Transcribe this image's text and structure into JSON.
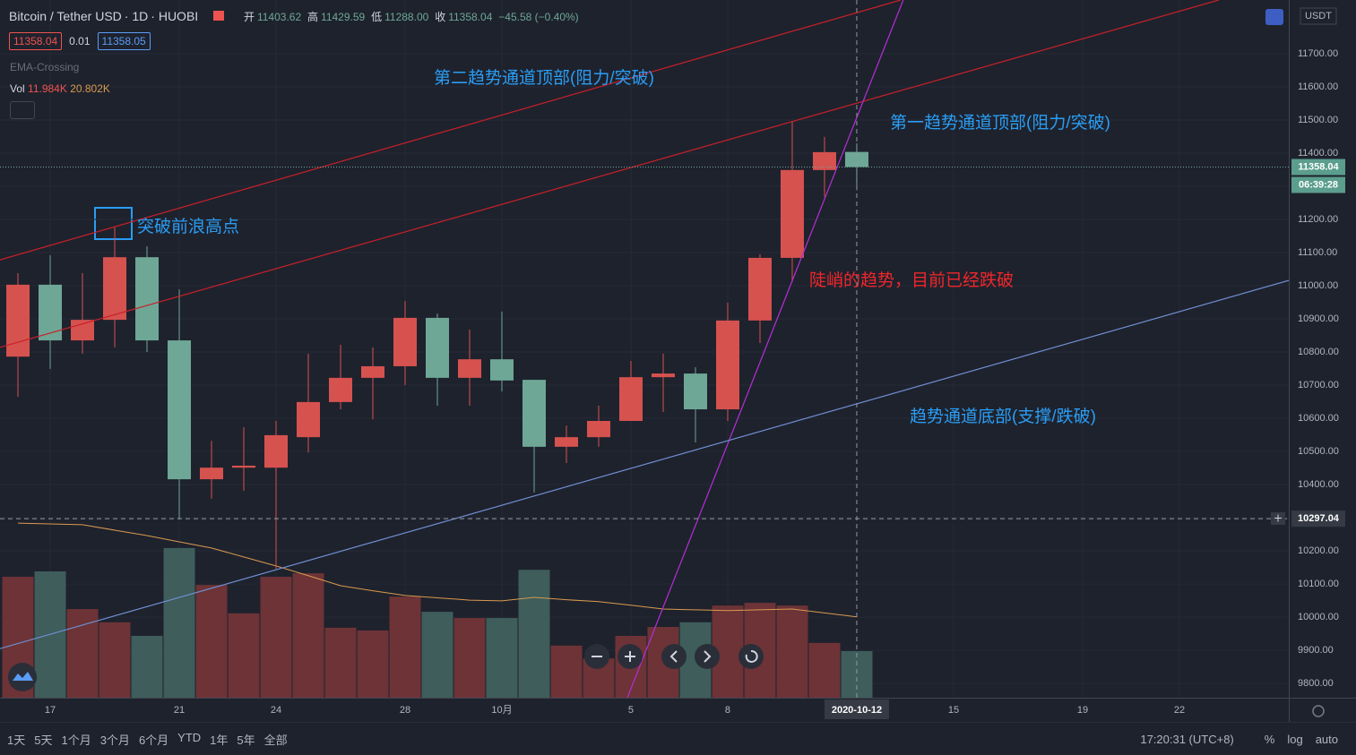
{
  "header": {
    "symbol": "Bitcoin / Tether USD",
    "interval": "1D",
    "exchange": "HUOBI",
    "ohlc_labels": [
      "开",
      "高",
      "低",
      "收"
    ],
    "ohlc": [
      "11403.62",
      "11429.59",
      "11288.00",
      "11358.04"
    ],
    "change": "−45.58 (−0.40%)",
    "bid": "11358.04",
    "spread": "0.01",
    "ask": "11358.05",
    "indicator": "EMA-Crossing",
    "vol_label": "Vol",
    "vol_value": "11.984K",
    "vol_ma": "20.802K"
  },
  "currency": "USDT",
  "chart_data": {
    "type": "candlestick",
    "categories": [
      null,
      "17",
      null,
      null,
      null,
      "21",
      null,
      null,
      "24",
      null,
      null,
      null,
      "28",
      null,
      null,
      "10月",
      null,
      null,
      null,
      "5",
      null,
      null,
      "8",
      null,
      null,
      null,
      "2020-10-12"
    ],
    "open": [
      10786,
      11003,
      10835,
      10897,
      11086,
      10835,
      10416,
      10451,
      10451,
      10543,
      10649,
      10722,
      10757,
      10903,
      10722,
      10778,
      10716,
      10514,
      10543,
      10592,
      10724,
      10735,
      10627,
      10895,
      11084,
      11349,
      11403.62
    ],
    "high": [
      11038,
      11092,
      11038,
      11178,
      11119,
      10989,
      10532,
      10573,
      10592,
      10795,
      10822,
      10814,
      10954,
      10916,
      10868,
      10922,
      10716,
      10578,
      10638,
      10773,
      10795,
      10754,
      10949,
      11095,
      11495,
      11449,
      11429.59
    ],
    "low": [
      10665,
      10749,
      10795,
      10814,
      10800,
      10295,
      10357,
      10381,
      10146,
      10497,
      10627,
      10597,
      10700,
      10638,
      10638,
      10681,
      10376,
      10465,
      10514,
      10592,
      10619,
      10527,
      10592,
      10827,
      11011,
      11268,
      11288
    ],
    "close": [
      11003,
      10835,
      10897,
      11086,
      10835,
      10416,
      10451,
      10457,
      10549,
      10649,
      10722,
      10757,
      10903,
      10722,
      10778,
      10714,
      10514,
      10543,
      10592,
      10724,
      10735,
      10627,
      10895,
      11084,
      11349,
      11403,
      11358.04
    ],
    "up_color": "#d6524f",
    "down_color": "#6ea796",
    "volume": {
      "values": [
        31.1,
        32.5,
        22.8,
        19.4,
        15.9,
        38.5,
        29.0,
        21.7,
        31.1,
        32.0,
        18.0,
        17.3,
        26.0,
        22.1,
        20.5,
        20.5,
        32.9,
        13.4,
        10.1,
        15.9,
        18.2,
        19.4,
        23.7,
        24.4,
        23.7,
        14.1,
        11.984
      ],
      "ma": [
        44.9,
        44.7,
        44.5,
        43.1,
        41.7,
        40.1,
        38.5,
        36.2,
        33.9,
        31.4,
        28.8,
        27.5,
        26.3,
        25.7,
        25.1,
        24.9,
        25.8,
        25.2,
        24.7,
        23.8,
        22.8,
        22.6,
        22.4,
        22.6,
        22.8,
        21.8,
        20.802
      ],
      "lim": [
        0,
        50
      ],
      "up_color": "#6d3337",
      "down_color": "#3e5d5b",
      "ma_color": "#d99a4e"
    },
    "xlim": [
      -0.556,
      39.39
    ],
    "xticks": [
      {
        "value": 29,
        "label": "15"
      },
      {
        "value": 33,
        "label": "19"
      },
      {
        "value": 36,
        "label": "22"
      }
    ],
    "ylim": [
      9757,
      11862
    ],
    "yticks": [
      {
        "value": 9800,
        "label": "9800.00"
      },
      {
        "value": 9900,
        "label": "9900.00"
      },
      {
        "value": 10000,
        "label": "10000.00"
      },
      {
        "value": 10100,
        "label": "10100.00"
      },
      {
        "value": 10200,
        "label": "10200.00"
      },
      {
        "value": 10300,
        "label": "10300.00"
      },
      {
        "value": 10400,
        "label": "10400.00"
      },
      {
        "value": 10500,
        "label": "10500.00"
      },
      {
        "value": 10600,
        "label": "10600.00"
      },
      {
        "value": 10700,
        "label": "10700.00"
      },
      {
        "value": 10800,
        "label": "10800.00"
      },
      {
        "value": 10900,
        "label": "10900.00"
      },
      {
        "value": 11000,
        "label": "11000.00"
      },
      {
        "value": 11100,
        "label": "11100.00"
      },
      {
        "value": 11200,
        "label": "11200.00"
      },
      {
        "value": 11300,
        "label": "11300.00"
      },
      {
        "value": 11400,
        "label": "11400.00"
      },
      {
        "value": 11500,
        "label": "11500.00"
      },
      {
        "value": 11600,
        "label": "11600.00"
      },
      {
        "value": 11700,
        "label": "11700.00"
      }
    ],
    "grid": true,
    "trendlines": [
      {
        "color": "#c8202a",
        "points": [
          [
            -0.556,
            10814
          ],
          [
            37.22,
            11862
          ]
        ]
      },
      {
        "color": "#c8202a",
        "points": [
          [
            -0.556,
            11078
          ],
          [
            27.36,
            11862
          ]
        ]
      },
      {
        "color": "#b52ed6",
        "points": [
          [
            18.89,
            9757
          ],
          [
            27.44,
            11862
          ]
        ]
      },
      {
        "color": "#6f8fd0",
        "points": [
          [
            -0.556,
            9905
          ],
          [
            39.39,
            11016
          ]
        ]
      }
    ],
    "annotations": [
      {
        "text": "第二趋势通道顶部(阻力/突破)",
        "color": "#2a9df4"
      },
      {
        "text": "第一趋势通道顶部(阻力/突破)",
        "color": "#2a9df4"
      },
      {
        "text": "突破前浪高点",
        "color": "#2a9df4"
      },
      {
        "text": "陡峭的趋势，目前已经跌破",
        "color": "#f0262a"
      },
      {
        "text": "趋势通道底部(支撑/跌破)",
        "color": "#2a9df4"
      }
    ],
    "price_line": {
      "value": 11358.04,
      "label": "11358.04",
      "countdown": "06:39:28"
    },
    "crosshair": {
      "value": 10297.04,
      "label": "10297.04",
      "index": 26
    }
  },
  "toolbar": {
    "ranges": [
      "1天",
      "5天",
      "1个月",
      "3个月",
      "6个月",
      "YTD",
      "1年",
      "5年",
      "全部"
    ],
    "clock": "17:20:31 (UTC+8)",
    "options": [
      "%",
      "log",
      "auto"
    ]
  }
}
